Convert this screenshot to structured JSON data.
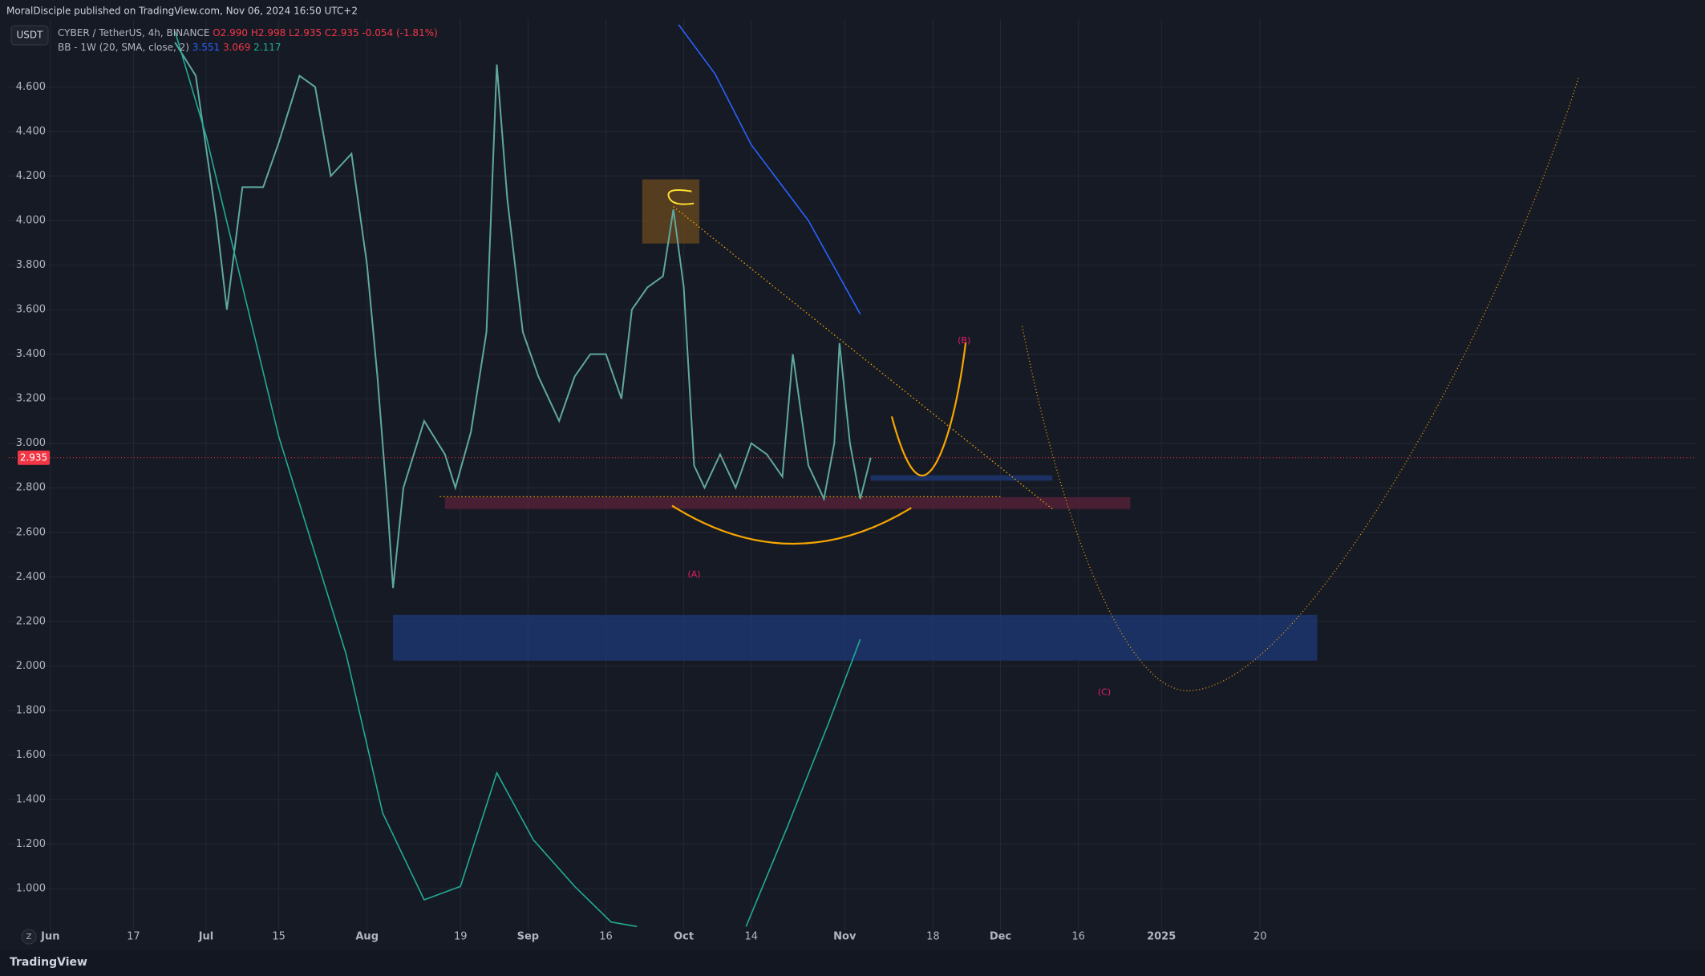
{
  "header": {
    "publisher": "MoralDisciple published on TradingView.com, Nov 06, 2024 16:50 UTC+2",
    "currency_button": "USDT",
    "symbol": "CYBER / TetherUS, 4h, BINANCE",
    "ohlc": [
      "O2.990",
      "H2.998",
      "L2.935",
      "C2.935"
    ],
    "change": "-0.054 (-1.81%)",
    "indicator": "BB - 1W (20, SMA, close, 2)",
    "indicator_values": [
      "3.551",
      "3.069",
      "2.117"
    ]
  },
  "footer": {
    "brand": "TradingView",
    "scale_button": "Z"
  },
  "chart_data": {
    "type": "line",
    "xlim": [
      "2024-05-24",
      "2025-04-14"
    ],
    "ylim": [
      0.741,
      4.904
    ],
    "xticks": [
      {
        "value": "2024-06-01",
        "label": "Jun"
      },
      {
        "value": "2024-06-17",
        "label": "17"
      },
      {
        "value": "2024-07-01",
        "label": "Jul"
      },
      {
        "value": "2024-07-15",
        "label": "15"
      },
      {
        "value": "2024-08-01",
        "label": "Aug"
      },
      {
        "value": "2024-08-19",
        "label": "19"
      },
      {
        "value": "2024-09-01",
        "label": "Sep"
      },
      {
        "value": "2024-09-16",
        "label": "16"
      },
      {
        "value": "2024-10-01",
        "label": "Oct"
      },
      {
        "value": "2024-10-14",
        "label": "14"
      },
      {
        "value": "2024-11-01",
        "label": "Nov"
      },
      {
        "value": "2024-11-18",
        "label": "18"
      },
      {
        "value": "2024-12-01",
        "label": "Dec"
      },
      {
        "value": "2024-12-16",
        "label": "16"
      },
      {
        "value": "2025-01-01",
        "label": "2025"
      },
      {
        "value": "2025-01-20",
        "label": "20"
      }
    ],
    "yticks": [
      {
        "value": 1.0,
        "label": "1.000"
      },
      {
        "value": 1.2,
        "label": "1.200"
      },
      {
        "value": 1.4,
        "label": "1.400"
      },
      {
        "value": 1.6,
        "label": "1.600"
      },
      {
        "value": 1.8,
        "label": "1.800"
      },
      {
        "value": 2.0,
        "label": "2.000"
      },
      {
        "value": 2.2,
        "label": "2.200"
      },
      {
        "value": 2.4,
        "label": "2.400"
      },
      {
        "value": 2.6,
        "label": "2.600"
      },
      {
        "value": 2.8,
        "label": "2.800"
      },
      {
        "value": 3.0,
        "label": "3.000"
      },
      {
        "value": 3.2,
        "label": "3.200"
      },
      {
        "value": 3.4,
        "label": "3.400"
      },
      {
        "value": 3.6,
        "label": "3.600"
      },
      {
        "value": 3.8,
        "label": "3.800"
      },
      {
        "value": 4.0,
        "label": "4.000"
      },
      {
        "value": 4.2,
        "label": "4.200"
      },
      {
        "value": 4.4,
        "label": "4.400"
      },
      {
        "value": 4.6,
        "label": "4.600"
      }
    ],
    "grid": true,
    "last_price": 2.935,
    "series": [
      {
        "name": "CYBER / TetherUS",
        "color": "#5fa8a0",
        "x": [
          "2024-06-25",
          "2024-06-29",
          "2024-07-03",
          "2024-07-05",
          "2024-07-08",
          "2024-07-12",
          "2024-07-15",
          "2024-07-19",
          "2024-07-22",
          "2024-07-25",
          "2024-07-29",
          "2024-08-01",
          "2024-08-03",
          "2024-08-05",
          "2024-08-06",
          "2024-08-08",
          "2024-08-12",
          "2024-08-16",
          "2024-08-18",
          "2024-08-21",
          "2024-08-24",
          "2024-08-26",
          "2024-08-28",
          "2024-08-31",
          "2024-09-03",
          "2024-09-07",
          "2024-09-10",
          "2024-09-13",
          "2024-09-16",
          "2024-09-19",
          "2024-09-21",
          "2024-09-24",
          "2024-09-27",
          "2024-09-29",
          "2024-10-01",
          "2024-10-03",
          "2024-10-05",
          "2024-10-08",
          "2024-10-11",
          "2024-10-14",
          "2024-10-17",
          "2024-10-20",
          "2024-10-22",
          "2024-10-25",
          "2024-10-28",
          "2024-10-30",
          "2024-10-31",
          "2024-11-02",
          "2024-11-04",
          "2024-11-06"
        ],
        "values": [
          4.8,
          4.65,
          4.0,
          3.6,
          4.15,
          4.15,
          4.35,
          4.65,
          4.6,
          4.2,
          4.3,
          3.8,
          3.3,
          2.7,
          2.35,
          2.8,
          3.1,
          2.95,
          2.8,
          3.05,
          3.5,
          4.7,
          4.1,
          3.5,
          3.3,
          3.1,
          3.3,
          3.4,
          3.4,
          3.2,
          3.6,
          3.7,
          3.75,
          4.05,
          3.7,
          2.9,
          2.8,
          2.95,
          2.8,
          3.0,
          2.95,
          2.85,
          3.4,
          2.9,
          2.75,
          3.0,
          3.45,
          3.0,
          2.75,
          2.935
        ]
      },
      {
        "name": "BB upper",
        "color": "#2962ff",
        "x": [
          "2024-09-30",
          "2024-10-07",
          "2024-10-14",
          "2024-10-25",
          "2024-11-04"
        ],
        "values": [
          4.88,
          4.66,
          4.34,
          4.0,
          3.58
        ]
      },
      {
        "name": "BB lower",
        "color": "#22ab94",
        "x": [
          "2024-06-25",
          "2024-07-01",
          "2024-07-15",
          "2024-07-28",
          "2024-08-04",
          "2024-08-12",
          "2024-08-19",
          "2024-08-26",
          "2024-09-02",
          "2024-09-10",
          "2024-09-17",
          "2024-09-22",
          "2024-10-01",
          "2024-10-13",
          "2024-10-21",
          "2024-10-29",
          "2024-11-04"
        ],
        "values": [
          4.85,
          4.38,
          3.03,
          2.05,
          1.34,
          0.95,
          1.01,
          1.52,
          1.22,
          1.01,
          0.85,
          0.83,
          null,
          0.83,
          1.28,
          1.75,
          2.12
        ]
      }
    ],
    "zones": [
      {
        "x": [
          "2024-08-06",
          "2025-01-31"
        ],
        "y": [
          2.024,
          2.229
        ],
        "color": "#1e3a78"
      },
      {
        "x": [
          "2024-08-16",
          "2024-12-26"
        ],
        "y": [
          2.705,
          2.758
        ],
        "color": "#5a2238"
      },
      {
        "x": [
          "2024-11-06",
          "2024-12-11"
        ],
        "y": [
          2.832,
          2.856
        ],
        "color": "#1e3a78"
      },
      {
        "x": [
          "2024-09-23",
          "2024-10-04"
        ],
        "y": [
          3.897,
          4.185
        ],
        "color": "#6b4a1e"
      }
    ],
    "trendlines": [
      {
        "x": [
          "2024-09-29",
          "2024-12-11"
        ],
        "y": [
          4.063,
          2.705
        ],
        "color": "#f7a600"
      },
      {
        "x": [
          "2024-08-15",
          "2024-12-01"
        ],
        "y": [
          2.76,
          2.76
        ],
        "color": "#f7a600"
      }
    ],
    "annotations": [
      {
        "text": "(A)",
        "x": "2024-10-03",
        "y": 2.41,
        "color": "#e91e63"
      },
      {
        "text": "(B)",
        "x": "2024-11-24",
        "y": 3.46,
        "color": "#e91e63"
      },
      {
        "text": "(C)",
        "x": "2024-12-21",
        "y": 1.88,
        "color": "#e91e63"
      }
    ]
  }
}
